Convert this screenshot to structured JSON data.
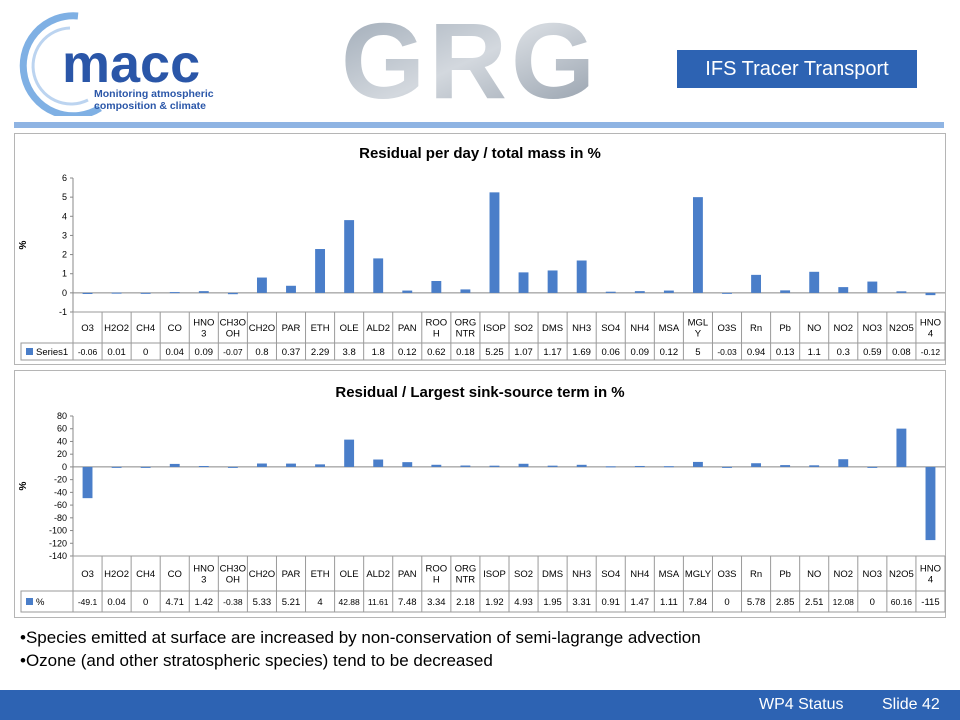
{
  "header": {
    "logo_text": "macc",
    "logo_tagline_1": "Monitoring atmospheric",
    "logo_tagline_2": "composition & climate",
    "banner_text": "GRG",
    "slide_title": "IFS Tracer Transport"
  },
  "chart_data": [
    {
      "type": "bar",
      "title": "Residual per day / total mass in %",
      "ylabel": "%",
      "ylim": [
        -1,
        6
      ],
      "yticks": [
        "6",
        "5",
        "4",
        "3",
        "2",
        "1",
        "0",
        "-1"
      ],
      "series_label": "Series1",
      "color": "#4a7ec9",
      "categories": [
        "O3",
        "H2O2",
        "CH4",
        "CO",
        "HNO 3",
        "CH3O OH",
        "CH2O",
        "PAR",
        "ETH",
        "OLE",
        "ALD2",
        "PAN",
        "ROO H",
        "ORG NTR",
        "ISOP",
        "SO2",
        "DMS",
        "NH3",
        "SO4",
        "NH4",
        "MSA",
        "MGL Y",
        "O3S",
        "Rn",
        "Pb",
        "NO",
        "NO2",
        "NO3",
        "N2O5",
        "HNO 4"
      ],
      "values": [
        -0.06,
        0.01,
        0,
        0.04,
        0.09,
        -0.07,
        0.8,
        0.37,
        2.29,
        3.8,
        1.8,
        0.12,
        0.62,
        0.18,
        5.25,
        1.07,
        1.17,
        1.69,
        0.06,
        0.09,
        0.12,
        5,
        -0.03,
        0.94,
        0.13,
        1.1,
        0.3,
        0.59,
        0.08,
        -0.12
      ]
    },
    {
      "type": "bar",
      "title": "Residual / Largest sink-source term in %",
      "ylabel": "%",
      "ylim": [
        -140,
        80
      ],
      "yticks": [
        "80",
        "60",
        "40",
        "20",
        "0",
        "-20",
        "-40",
        "-60",
        "-80",
        "-100",
        "-120",
        "-140"
      ],
      "series_label": "%",
      "color": "#4a7ec9",
      "categories": [
        "O3",
        "H2O2",
        "CH4",
        "CO",
        "HNO 3",
        "CH3O OH",
        "CH2O",
        "PAR",
        "ETH",
        "OLE",
        "ALD2",
        "PAN",
        "ROO H",
        "ORG NTR",
        "ISOP",
        "SO2",
        "DMS",
        "NH3",
        "SO4",
        "NH4",
        "MSA",
        "MGLY",
        "O3S",
        "Rn",
        "Pb",
        "NO",
        "NO2",
        "NO3",
        "N2O5",
        "HNO 4"
      ],
      "values": [
        -49.1,
        0.04,
        0,
        4.71,
        1.42,
        -0.38,
        5.33,
        5.21,
        4,
        42.88,
        11.61,
        7.48,
        3.34,
        2.18,
        1.92,
        4.93,
        1.95,
        3.31,
        0.91,
        1.47,
        1.11,
        7.84,
        0,
        5.78,
        2.85,
        2.51,
        12.08,
        0,
        60.16,
        -115
      ]
    }
  ],
  "bullets": [
    "•Species emitted at surface are increased by non-conservation of semi-lagrange advection",
    "•Ozone (and other stratospheric species) tend to be decreased"
  ],
  "footer": {
    "left": "WP4 Status",
    "right": "Slide 42"
  }
}
